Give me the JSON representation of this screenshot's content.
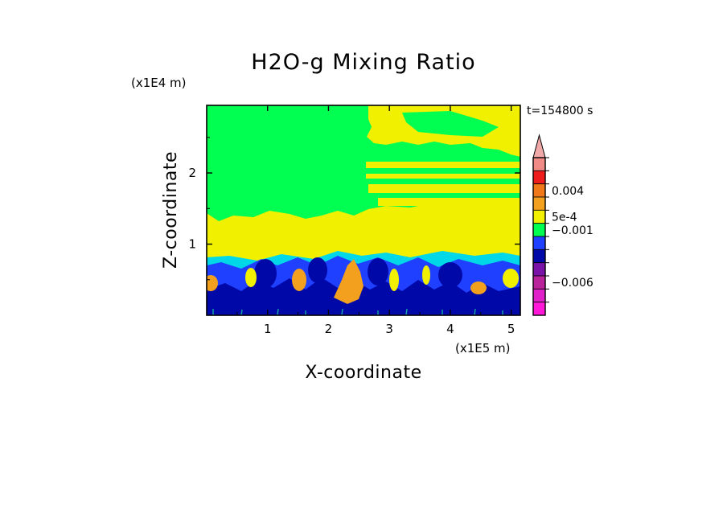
{
  "chart_data": {
    "type": "heatmap",
    "title": "H2O-g Mixing Ratio",
    "xlabel": "X-coordinate",
    "ylabel": "Z-coordinate",
    "x_scale_label": "(x1E5 m)",
    "y_scale_label": "(x1E4 m)",
    "time_label": "t=154800 s",
    "xlim": [
      0,
      5.15
    ],
    "ylim": [
      0,
      2.95
    ],
    "x_ticks": [
      {
        "value": 1,
        "label": "1"
      },
      {
        "value": 2,
        "label": "2"
      },
      {
        "value": 3,
        "label": "3"
      },
      {
        "value": 4,
        "label": "4"
      },
      {
        "value": 5,
        "label": "5"
      }
    ],
    "y_ticks": [
      {
        "value": 1,
        "label": "1"
      },
      {
        "value": 2,
        "label": "2"
      }
    ],
    "colorbar": {
      "levels_top_to_bottom": [
        {
          "color": "#f08a86"
        },
        {
          "color": "#ee1c1c"
        },
        {
          "color": "#f07818"
        },
        {
          "color": "#f2a01e"
        },
        {
          "color": "#f0f000"
        },
        {
          "color": "#00ff50"
        },
        {
          "color": "#2040ff"
        },
        {
          "color": "#0008a8"
        },
        {
          "color": "#7a12a8"
        },
        {
          "color": "#b8229a"
        },
        {
          "color": "#e020c8"
        },
        {
          "color": "#ff18d8"
        }
      ],
      "extension_top_color": "#f0a8a8",
      "labels": [
        {
          "text": "0.004",
          "at_level": 2
        },
        {
          "text": "5e-4",
          "at_level": 4
        },
        {
          "text": "−0.001",
          "at_level": 5
        },
        {
          "text": "−0.006",
          "at_level": 9
        }
      ]
    },
    "palette": {
      "background_green": "#00ff50",
      "yellow": "#f0f000",
      "orange": "#f2a01e",
      "cyan": "#00d8e8",
      "blue": "#2040ff",
      "navy": "#0008a8",
      "teal": "#10a0a0"
    }
  }
}
